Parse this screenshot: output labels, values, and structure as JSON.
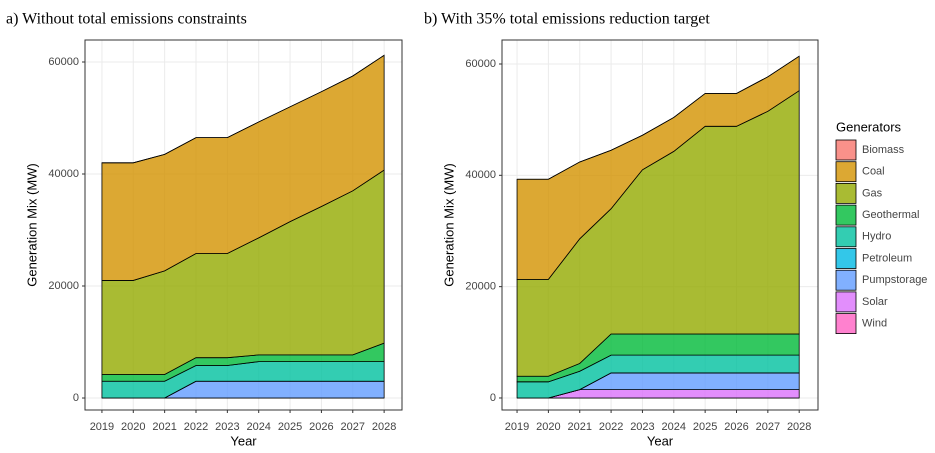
{
  "chart_data": [
    {
      "type": "area",
      "stacked": true,
      "title": "a) Without total emissions constraints",
      "x_label": "Year",
      "y_label": "Generation Mix (MW)",
      "x": [
        2019,
        2020,
        2021,
        2022,
        2023,
        2024,
        2025,
        2026,
        2027,
        2028
      ],
      "xlim": [
        2018.46,
        2028.57
      ],
      "xticks": [
        2019,
        2020,
        2021,
        2022,
        2023,
        2024,
        2025,
        2026,
        2027,
        2028
      ],
      "ylim": [
        -2140,
        63930
      ],
      "yticks": [
        0,
        20000,
        40000,
        60000
      ],
      "grid": true,
      "series": [
        {
          "name": "Biomass",
          "color": "#F8766D",
          "values": [
            0,
            0,
            0,
            0,
            0,
            0,
            0,
            0,
            0,
            0
          ]
        },
        {
          "name": "Coal",
          "color": "#D39200",
          "values": [
            21000,
            21000,
            20800,
            20700,
            20700,
            20700,
            20500,
            20500,
            20500,
            20500
          ]
        },
        {
          "name": "Gas",
          "color": "#93AA00",
          "values": [
            16800,
            16800,
            18500,
            18600,
            18600,
            20900,
            23800,
            26500,
            29300,
            30900
          ]
        },
        {
          "name": "Geothermal",
          "color": "#00BA38",
          "values": [
            1200,
            1200,
            1200,
            1400,
            1400,
            1200,
            1200,
            1200,
            1200,
            3300
          ]
        },
        {
          "name": "Hydro",
          "color": "#00C19F",
          "values": [
            3000,
            3000,
            3000,
            2800,
            2800,
            3500,
            3500,
            3500,
            3500,
            3500
          ]
        },
        {
          "name": "Petroleum",
          "color": "#00B9E3",
          "values": [
            0,
            0,
            0,
            0,
            0,
            0,
            0,
            0,
            0,
            0
          ]
        },
        {
          "name": "Pumpstorage",
          "color": "#619CFF",
          "values": [
            0,
            0,
            0,
            3000,
            3000,
            3000,
            3000,
            3000,
            3000,
            3000
          ]
        },
        {
          "name": "Solar",
          "color": "#DB72FB",
          "values": [
            0,
            0,
            0,
            0,
            0,
            0,
            0,
            0,
            0,
            0
          ]
        },
        {
          "name": "Wind",
          "color": "#FF61C3",
          "values": [
            0,
            0,
            0,
            0,
            0,
            0,
            0,
            0,
            0,
            0
          ]
        }
      ]
    },
    {
      "type": "area",
      "stacked": true,
      "title": "b) With 35% total emissions reduction target",
      "x_label": "Year",
      "y_label": "Generation Mix (MW)",
      "legend_title": "Generators",
      "legend": "right",
      "x": [
        2019,
        2020,
        2021,
        2022,
        2023,
        2024,
        2025,
        2026,
        2027,
        2028
      ],
      "xlim": [
        2018.52,
        2028.6
      ],
      "xticks": [
        2019,
        2020,
        2021,
        2022,
        2023,
        2024,
        2025,
        2026,
        2027,
        2028
      ],
      "ylim": [
        -2160,
        64310
      ],
      "yticks": [
        0,
        20000,
        40000,
        60000
      ],
      "grid": true,
      "series": [
        {
          "name": "Biomass",
          "color": "#F8766D",
          "values": [
            0,
            0,
            0,
            0,
            0,
            0,
            0,
            0,
            0,
            0
          ]
        },
        {
          "name": "Coal",
          "color": "#D39200",
          "values": [
            18000,
            18000,
            13800,
            10500,
            6200,
            6100,
            5900,
            5900,
            6200,
            6200
          ]
        },
        {
          "name": "Gas",
          "color": "#93AA00",
          "values": [
            17400,
            17400,
            22400,
            22500,
            29500,
            32800,
            37300,
            37300,
            40000,
            43700
          ]
        },
        {
          "name": "Geothermal",
          "color": "#00BA38",
          "values": [
            1000,
            1000,
            1400,
            3800,
            3800,
            3800,
            3800,
            3800,
            3800,
            3800
          ]
        },
        {
          "name": "Hydro",
          "color": "#00C19F",
          "values": [
            2900,
            2900,
            3300,
            3200,
            3200,
            3200,
            3200,
            3200,
            3200,
            3200
          ]
        },
        {
          "name": "Petroleum",
          "color": "#00B9E3",
          "values": [
            0,
            0,
            0,
            0,
            0,
            0,
            0,
            0,
            0,
            0
          ]
        },
        {
          "name": "Pumpstorage",
          "color": "#619CFF",
          "values": [
            0,
            0,
            0,
            3000,
            3000,
            3000,
            3000,
            3000,
            3000,
            3000
          ]
        },
        {
          "name": "Solar",
          "color": "#DB72FB",
          "values": [
            0,
            0,
            1500,
            1500,
            1500,
            1500,
            1500,
            1500,
            1500,
            1500
          ]
        },
        {
          "name": "Wind",
          "color": "#FF61C3",
          "values": [
            0,
            0,
            0,
            0,
            0,
            0,
            0,
            0,
            0,
            0
          ]
        }
      ]
    }
  ]
}
